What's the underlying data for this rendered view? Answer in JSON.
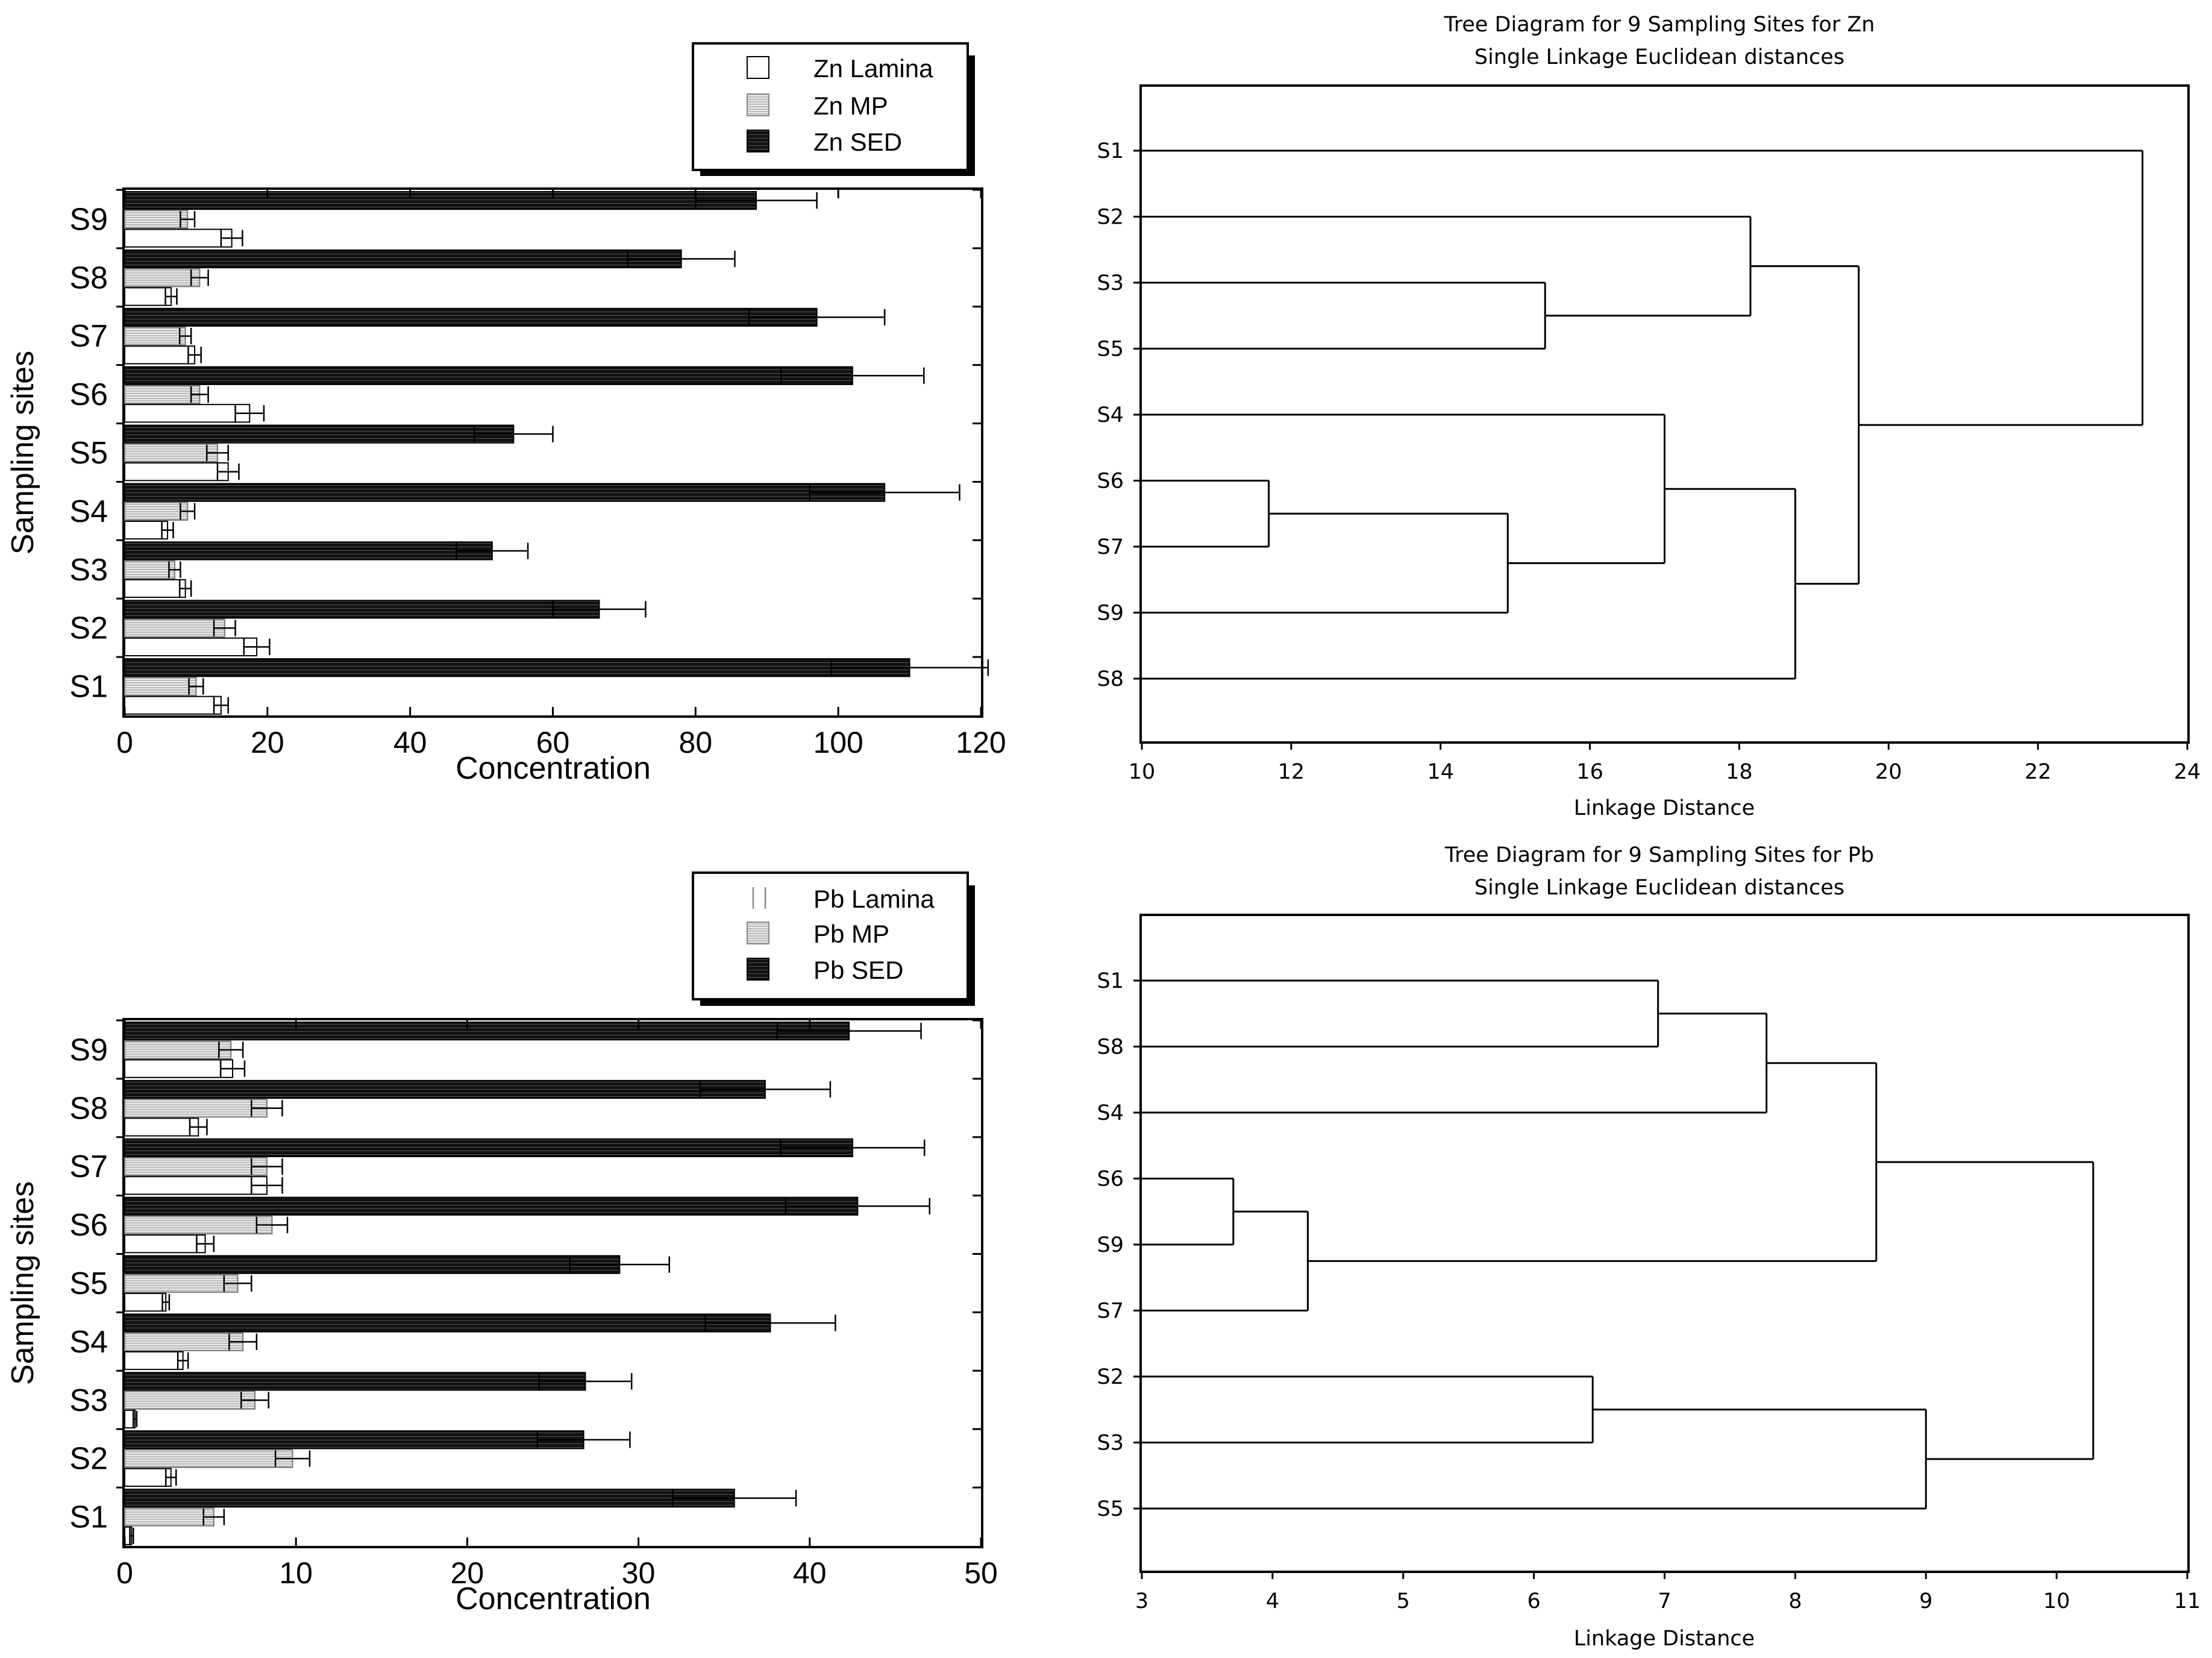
{
  "chart_data": [
    {
      "type": "bar",
      "orientation": "horizontal",
      "categories": [
        "S1",
        "S2",
        "S3",
        "S4",
        "S5",
        "S6",
        "S7",
        "S8",
        "S9"
      ],
      "series": [
        {
          "name": "Zn Lamina",
          "values": [
            13.5,
            18.5,
            8.5,
            6.0,
            14.5,
            17.5,
            9.8,
            6.5,
            15.0
          ],
          "errors": [
            1.0,
            1.8,
            0.8,
            0.8,
            1.5,
            2.0,
            0.9,
            0.8,
            1.5
          ]
        },
        {
          "name": "Zn MP",
          "values": [
            10.0,
            14.0,
            7.0,
            8.8,
            13.0,
            10.5,
            8.5,
            10.5,
            8.8
          ],
          "errors": [
            1.0,
            1.5,
            0.8,
            1.0,
            1.5,
            1.2,
            0.8,
            1.2,
            1.0
          ]
        },
        {
          "name": "Zn SED",
          "values": [
            110.0,
            66.5,
            51.5,
            106.5,
            54.5,
            102.0,
            97.0,
            78.0,
            88.5
          ],
          "errors": [
            11.0,
            6.5,
            5.0,
            10.5,
            5.5,
            10.0,
            9.5,
            7.5,
            8.5
          ]
        }
      ],
      "title": "",
      "xlabel": "Concentration",
      "ylabel": "Sampling sites",
      "xlim": [
        0,
        120
      ],
      "xticks": [
        "0",
        "20",
        "40",
        "60",
        "80",
        "100",
        "120"
      ],
      "legend": "top-right"
    },
    {
      "type": "dendrogram",
      "title": "Tree Diagram for 9 Sampling Sites for Zn",
      "subtitle": "Single Linkage Euclidean distances",
      "xlabel": "Linkage Distance",
      "xlim": [
        10,
        24
      ],
      "xticks": [
        "10",
        "12",
        "14",
        "16",
        "18",
        "20",
        "22",
        "24"
      ],
      "leaves": [
        "S1",
        "S2",
        "S3",
        "S5",
        "S4",
        "S6",
        "S7",
        "S9",
        "S8"
      ],
      "merges": [
        {
          "a": "S6",
          "b": "S7",
          "distance": 11.7
        },
        {
          "a": "C1",
          "b": "S9",
          "distance": 14.9
        },
        {
          "a": "S3",
          "b": "S5",
          "distance": 15.4
        },
        {
          "a": "S4",
          "b": "C2",
          "distance": 17.0
        },
        {
          "a": "S2",
          "b": "C3",
          "distance": 18.15
        },
        {
          "a": "C4",
          "b": "S8",
          "distance": 18.75
        },
        {
          "a": "C5",
          "b": "C6",
          "distance": 19.6
        },
        {
          "a": "S1",
          "b": "C7",
          "distance": 23.4
        }
      ]
    },
    {
      "type": "bar",
      "orientation": "horizontal",
      "categories": [
        "S1",
        "S2",
        "S3",
        "S4",
        "S5",
        "S6",
        "S7",
        "S8",
        "S9"
      ],
      "series": [
        {
          "name": "Pb Lamina",
          "values": [
            0.4,
            2.7,
            0.6,
            3.4,
            2.4,
            4.7,
            8.3,
            4.3,
            6.3
          ],
          "errors": [
            0.1,
            0.3,
            0.1,
            0.3,
            0.2,
            0.5,
            0.9,
            0.5,
            0.7
          ]
        },
        {
          "name": "Pb MP",
          "values": [
            5.2,
            9.8,
            7.6,
            6.9,
            6.6,
            8.6,
            8.3,
            8.3,
            6.2
          ],
          "errors": [
            0.6,
            1.0,
            0.8,
            0.8,
            0.8,
            0.9,
            0.9,
            0.9,
            0.7
          ]
        },
        {
          "name": "Pb SED",
          "values": [
            35.6,
            26.8,
            26.9,
            37.7,
            28.9,
            42.8,
            42.5,
            37.4,
            42.3
          ],
          "errors": [
            3.6,
            2.7,
            2.7,
            3.8,
            2.9,
            4.2,
            4.2,
            3.8,
            4.2
          ]
        }
      ],
      "title": "",
      "xlabel": "Concentration",
      "ylabel": "Sampling sites",
      "xlim": [
        0,
        50
      ],
      "xticks": [
        "0",
        "10",
        "20",
        "30",
        "40",
        "50"
      ],
      "legend": "top-right"
    },
    {
      "type": "dendrogram",
      "title": "Tree Diagram for 9 Sampling Sites for Pb",
      "subtitle": "Single Linkage Euclidean distances",
      "xlabel": "Linkage Distance",
      "xlim": [
        3,
        11
      ],
      "xticks": [
        "3",
        "4",
        "5",
        "6",
        "7",
        "8",
        "9",
        "10",
        "11"
      ],
      "leaves": [
        "S1",
        "S8",
        "S4",
        "S6",
        "S9",
        "S7",
        "S2",
        "S3",
        "S5"
      ],
      "merges": [
        {
          "a": "S6",
          "b": "S9",
          "distance": 3.7
        },
        {
          "a": "C1",
          "b": "S7",
          "distance": 4.27
        },
        {
          "a": "S2",
          "b": "S3",
          "distance": 6.45
        },
        {
          "a": "S1",
          "b": "S8",
          "distance": 6.95
        },
        {
          "a": "C4",
          "b": "S4",
          "distance": 7.78
        },
        {
          "a": "C5",
          "b": "C2",
          "distance": 8.62
        },
        {
          "a": "C3",
          "b": "S5",
          "distance": 9.0
        },
        {
          "a": "C6",
          "b": "C7",
          "distance": 10.28
        }
      ]
    }
  ]
}
